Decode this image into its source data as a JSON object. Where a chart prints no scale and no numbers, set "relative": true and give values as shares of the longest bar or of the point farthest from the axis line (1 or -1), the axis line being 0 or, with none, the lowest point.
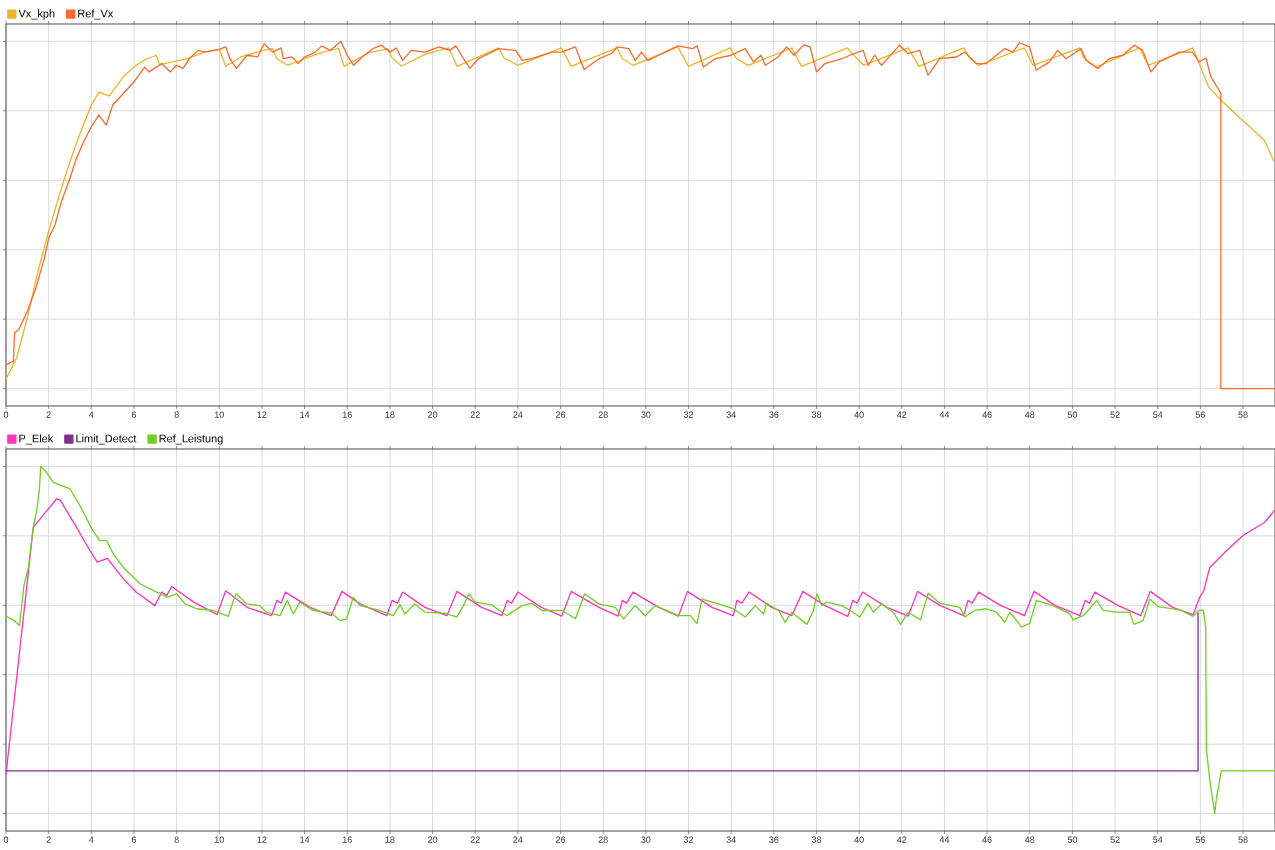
{
  "chart_data": [
    {
      "type": "line",
      "relative": true,
      "xlim": [
        0,
        59.5
      ],
      "xticks": [
        0,
        2,
        4,
        6,
        8,
        10,
        12,
        14,
        16,
        18,
        20,
        22,
        24,
        26,
        28,
        30,
        32,
        34,
        36,
        38,
        40,
        42,
        44,
        46,
        48,
        50,
        52,
        54,
        56,
        58
      ],
      "grid": true,
      "legend": "top left",
      "series": [
        {
          "name": "Vx_kph",
          "color": "#f0b428",
          "x": [
            0,
            0.5,
            1,
            1.5,
            2,
            2.5,
            3,
            3.5,
            4,
            4.35,
            4.85,
            5.5,
            6,
            6.5,
            7.05,
            7.2,
            7.6,
            8.5,
            9.3,
            10,
            10.3,
            11,
            12,
            12.5,
            12.7,
            13.2,
            14,
            15,
            15.6,
            15.85,
            17,
            17.9,
            18.1,
            18.55,
            19.7,
            20.75,
            21.15,
            23.1,
            23.35,
            24,
            26.05,
            26.5,
            28.65,
            28.9,
            29.4,
            31.5,
            32,
            33.95,
            34.25,
            34.8,
            36.85,
            37.3,
            39.45,
            39.6,
            40.2,
            42.3,
            42.8,
            44.9,
            45.2,
            45.6,
            47.75,
            48.15,
            50.35,
            50.5,
            51.1,
            53.15,
            53.55,
            55.65,
            56.38,
            56.96,
            57.97,
            58.99,
            59.45
          ],
          "values": [
            0.027,
            0.089,
            0.204,
            0.338,
            0.453,
            0.558,
            0.654,
            0.74,
            0.816,
            0.853,
            0.843,
            0.898,
            0.926,
            0.947,
            0.96,
            0.933,
            0.938,
            0.95,
            0.969,
            0.977,
            0.928,
            0.955,
            0.973,
            0.979,
            0.95,
            0.931,
            0.95,
            0.972,
            0.979,
            0.928,
            0.967,
            0.979,
            0.952,
            0.929,
            0.964,
            0.981,
            0.928,
            0.981,
            0.952,
            0.931,
            0.981,
            0.928,
            0.981,
            0.95,
            0.931,
            0.984,
            0.928,
            0.981,
            0.95,
            0.931,
            0.981,
            0.928,
            0.981,
            0.969,
            0.931,
            0.981,
            0.928,
            0.981,
            0.95,
            0.931,
            0.981,
            0.931,
            0.981,
            0.955,
            0.926,
            0.981,
            0.931,
            0.981,
            0.869,
            0.831,
            0.773,
            0.716,
            0.654
          ]
        },
        {
          "name": "Ref_Vx",
          "color": "#f96b2d",
          "x": [
            0,
            0.35,
            0.4,
            0.6,
            1,
            1.4,
            1.8,
            2,
            2.3,
            2.6,
            3,
            3.3,
            3.6,
            4,
            4.35,
            4.7,
            5,
            5.5,
            6,
            6.5,
            6.7,
            7.3,
            7.7,
            8,
            8.3,
            8.6,
            9,
            9.3,
            10,
            10.3,
            10.5,
            10.8,
            11.3,
            11.8,
            12.1,
            12.5,
            12.9,
            13,
            13.4,
            13.7,
            14,
            14.5,
            14.8,
            15.2,
            15.7,
            16,
            16.3,
            16.7,
            17.2,
            17.6,
            18,
            18.3,
            18.6,
            19,
            19.66,
            20.3,
            20.8,
            21.1,
            21.45,
            21.75,
            22.15,
            23.1,
            23.9,
            24.2,
            24.65,
            25.6,
            26.05,
            26.7,
            27.1,
            27.8,
            28.4,
            28.65,
            29.2,
            29.5,
            29.8,
            30.1,
            30.6,
            31.5,
            32.2,
            32.4,
            32.7,
            33.25,
            34,
            34.65,
            35.05,
            35.4,
            35.6,
            36.2,
            36.6,
            36.95,
            37.4,
            37.7,
            38,
            38.4,
            39.2,
            39.56,
            40.19,
            40.42,
            40.73,
            41.05,
            41.9,
            42.29,
            42.84,
            43.23,
            43.78,
            44.56,
            44.95,
            45.49,
            45.96,
            46.43,
            46.82,
            47.21,
            47.52,
            47.99,
            48.3,
            48.92,
            49.31,
            49.7,
            50.41,
            50.64,
            51.19,
            51.73,
            52.36,
            52.9,
            53.29,
            53.68,
            54.07,
            55.01,
            55.63,
            55.94,
            56.26,
            56.49,
            56.96,
            56.96,
            59.5
          ],
          "values": [
            0.068,
            0.079,
            0.161,
            0.17,
            0.223,
            0.29,
            0.376,
            0.433,
            0.472,
            0.539,
            0.606,
            0.663,
            0.706,
            0.754,
            0.788,
            0.759,
            0.816,
            0.85,
            0.883,
            0.926,
            0.912,
            0.936,
            0.912,
            0.931,
            0.922,
            0.95,
            0.974,
            0.969,
            0.977,
            0.984,
            0.95,
            0.922,
            0.96,
            0.955,
            0.993,
            0.969,
            0.981,
            0.95,
            0.955,
            0.936,
            0.955,
            0.969,
            0.987,
            0.974,
            1,
            0.96,
            0.931,
            0.955,
            0.979,
            0.989,
            0.969,
            0.981,
            0.945,
            0.974,
            0.969,
            0.984,
            0.974,
            0.987,
            0.95,
            0.922,
            0.95,
            0.979,
            0.974,
            0.945,
            0.95,
            0.969,
            0.969,
            0.984,
            0.919,
            0.95,
            0.965,
            0.984,
            0.979,
            0.945,
            0.969,
            0.945,
            0.96,
            0.987,
            0.979,
            0.987,
            0.926,
            0.95,
            0.96,
            0.979,
            0.941,
            0.96,
            0.931,
            0.955,
            0.984,
            0.96,
            0.99,
            0.984,
            0.912,
            0.936,
            0.95,
            0.96,
            0.974,
            0.931,
            0.96,
            0.931,
            0.989,
            0.965,
            0.974,
            0.902,
            0.95,
            0.955,
            0.969,
            0.936,
            0.936,
            0.96,
            0.979,
            0.969,
            0.996,
            0.984,
            0.917,
            0.941,
            0.974,
            0.95,
            0.979,
            0.945,
            0.922,
            0.95,
            0.96,
            0.989,
            0.974,
            0.912,
            0.941,
            0.969,
            0.969,
            0.941,
            0.952,
            0.898,
            0.85,
            0,
            0
          ]
        }
      ]
    },
    {
      "type": "line",
      "relative": true,
      "xlim": [
        0,
        59.5
      ],
      "xticks": [
        0,
        2,
        4,
        6,
        8,
        10,
        12,
        14,
        16,
        18,
        20,
        22,
        24,
        26,
        28,
        30,
        32,
        34,
        36,
        38,
        40,
        42,
        44,
        46,
        48,
        50,
        52,
        54,
        56,
        58
      ],
      "grid": true,
      "legend": "top left",
      "series": [
        {
          "name": "P_Elek",
          "color": "#ff33b8",
          "x": [
            0,
            1.28,
            2.37,
            2.53,
            3.3,
            3.94,
            4.28,
            4.75,
            5.5,
            6.1,
            6.98,
            7.3,
            7.53,
            7.77,
            8.8,
            9.9,
            10.3,
            11.3,
            12.45,
            12.7,
            12.9,
            13.1,
            14.25,
            15.25,
            15.75,
            16.6,
            17.85,
            18.1,
            18.35,
            18.6,
            19.64,
            20.67,
            21.14,
            22.3,
            23.25,
            23.5,
            23.7,
            24,
            25.1,
            26.06,
            26.5,
            27.8,
            28.7,
            28.9,
            29.1,
            29.4,
            30.6,
            31.53,
            31.95,
            33.1,
            34.1,
            34.27,
            34.5,
            34.84,
            35.9,
            36.84,
            37.36,
            38.4,
            39.47,
            39.7,
            39.9,
            40.16,
            41.3,
            42.3,
            42.74,
            43.8,
            44.9,
            45.1,
            45.3,
            45.6,
            46.65,
            47.75,
            48.2,
            49.2,
            50.35,
            50.6,
            50.8,
            51.05,
            52.15,
            53.2,
            53.65,
            54.7,
            55.66,
            55.97,
            56.16,
            56.44,
            57.22,
            58,
            59.02,
            59.48
          ],
          "values": [
            0.113,
            0.825,
            0.906,
            0.904,
            0.825,
            0.757,
            0.724,
            0.735,
            0.676,
            0.638,
            0.599,
            0.638,
            0.628,
            0.654,
            0.609,
            0.573,
            0.642,
            0.594,
            0.57,
            0.614,
            0.606,
            0.638,
            0.594,
            0.57,
            0.64,
            0.604,
            0.57,
            0.614,
            0.606,
            0.638,
            0.594,
            0.57,
            0.64,
            0.594,
            0.57,
            0.614,
            0.606,
            0.638,
            0.594,
            0.569,
            0.64,
            0.594,
            0.569,
            0.614,
            0.606,
            0.638,
            0.594,
            0.569,
            0.64,
            0.594,
            0.57,
            0.614,
            0.606,
            0.638,
            0.594,
            0.57,
            0.64,
            0.599,
            0.568,
            0.614,
            0.606,
            0.638,
            0.594,
            0.569,
            0.64,
            0.599,
            0.57,
            0.614,
            0.606,
            0.638,
            0.599,
            0.57,
            0.64,
            0.599,
            0.57,
            0.614,
            0.606,
            0.638,
            0.599,
            0.57,
            0.64,
            0.594,
            0.573,
            0.623,
            0.642,
            0.709,
            0.757,
            0.801,
            0.839,
            0.874
          ]
        },
        {
          "name": "Limit_Detect",
          "color": "#7e2f8e",
          "x": [
            0,
            55.89,
            55.89
          ],
          "values": [
            0.123,
            0.123,
            0.58
          ]
        },
        {
          "name": "Ref_Leistung",
          "color": "#6fcf23",
          "x": [
            0,
            0.34,
            0.63,
            0.73,
            0.84,
            1.05,
            1.28,
            1.44,
            1.56,
            1.63,
            1.9,
            2.22,
            3,
            3.47,
            4.02,
            4.4,
            4.72,
            5.03,
            5.5,
            6.28,
            7.06,
            7.3,
            7.53,
            8,
            8.4,
            8.94,
            9.72,
            10.42,
            10.66,
            10.8,
            11.28,
            11.9,
            12.2,
            12.84,
            13.19,
            13.47,
            13.78,
            14.4,
            15.27,
            15.66,
            15.97,
            16.28,
            16.6,
            17.53,
            18.16,
            18.47,
            18.7,
            19.17,
            19.64,
            20.6,
            21.14,
            21.45,
            21.7,
            22,
            22.78,
            23.48,
            24.2,
            24.66,
            25.13,
            26.06,
            26.7,
            27.13,
            27.78,
            28.56,
            28.95,
            29.5,
            29.97,
            30.44,
            31.53,
            32.08,
            32.4,
            32.63,
            33.4,
            34.1,
            34.66,
            35.13,
            35.52,
            35.67,
            36.22,
            36.53,
            36.84,
            37.55,
            37.86,
            38.02,
            38.25,
            38.48,
            39.19,
            39.58,
            40.03,
            40.42,
            40.66,
            41.05,
            41.6,
            41.94,
            42.3,
            42.88,
            43.23,
            43.78,
            44.72,
            44.95,
            45.42,
            45.97,
            46.44,
            46.83,
            47.06,
            47.45,
            47.61,
            48,
            48.31,
            49.09,
            49.88,
            50.03,
            50.5,
            50.73,
            51.13,
            51.44,
            52.06,
            52.69,
            52.88,
            53.31,
            53.63,
            54.02,
            55.03,
            55.66,
            55.89,
            56.13,
            56.25,
            56.28,
            56.44,
            56.67,
            56.75,
            56.98,
            59.5
          ],
          "values": [
            0.568,
            0.558,
            0.542,
            0.594,
            0.657,
            0.709,
            0.825,
            0.872,
            0.93,
            1,
            0.983,
            0.954,
            0.935,
            0.887,
            0.82,
            0.786,
            0.786,
            0.748,
            0.709,
            0.662,
            0.638,
            0.633,
            0.623,
            0.633,
            0.604,
            0.59,
            0.585,
            0.568,
            0.614,
            0.633,
            0.604,
            0.599,
            0.58,
            0.57,
            0.614,
            0.575,
            0.609,
            0.585,
            0.577,
            0.556,
            0.561,
            0.623,
            0.599,
            0.585,
            0.57,
            0.602,
            0.575,
            0.604,
            0.58,
            0.577,
            0.566,
            0.599,
            0.633,
            0.609,
            0.601,
            0.57,
            0.599,
            0.606,
            0.585,
            0.585,
            0.561,
            0.633,
            0.604,
            0.594,
            0.561,
            0.599,
            0.57,
            0.599,
            0.57,
            0.57,
            0.547,
            0.618,
            0.604,
            0.59,
            0.566,
            0.599,
            0.575,
            0.606,
            0.585,
            0.551,
            0.58,
            0.545,
            0.585,
            0.633,
            0.599,
            0.609,
            0.599,
            0.585,
            0.566,
            0.606,
            0.58,
            0.604,
            0.58,
            0.545,
            0.58,
            0.558,
            0.635,
            0.606,
            0.594,
            0.566,
            0.585,
            0.59,
            0.58,
            0.551,
            0.58,
            0.551,
            0.537,
            0.548,
            0.614,
            0.599,
            0.575,
            0.558,
            0.57,
            0.585,
            0.614,
            0.585,
            0.58,
            0.58,
            0.545,
            0.556,
            0.618,
            0.596,
            0.587,
            0.568,
            0.583,
            0.587,
            0.537,
            0.187,
            0.096,
            0,
            0.043,
            0.123,
            0.123
          ]
        }
      ]
    }
  ]
}
